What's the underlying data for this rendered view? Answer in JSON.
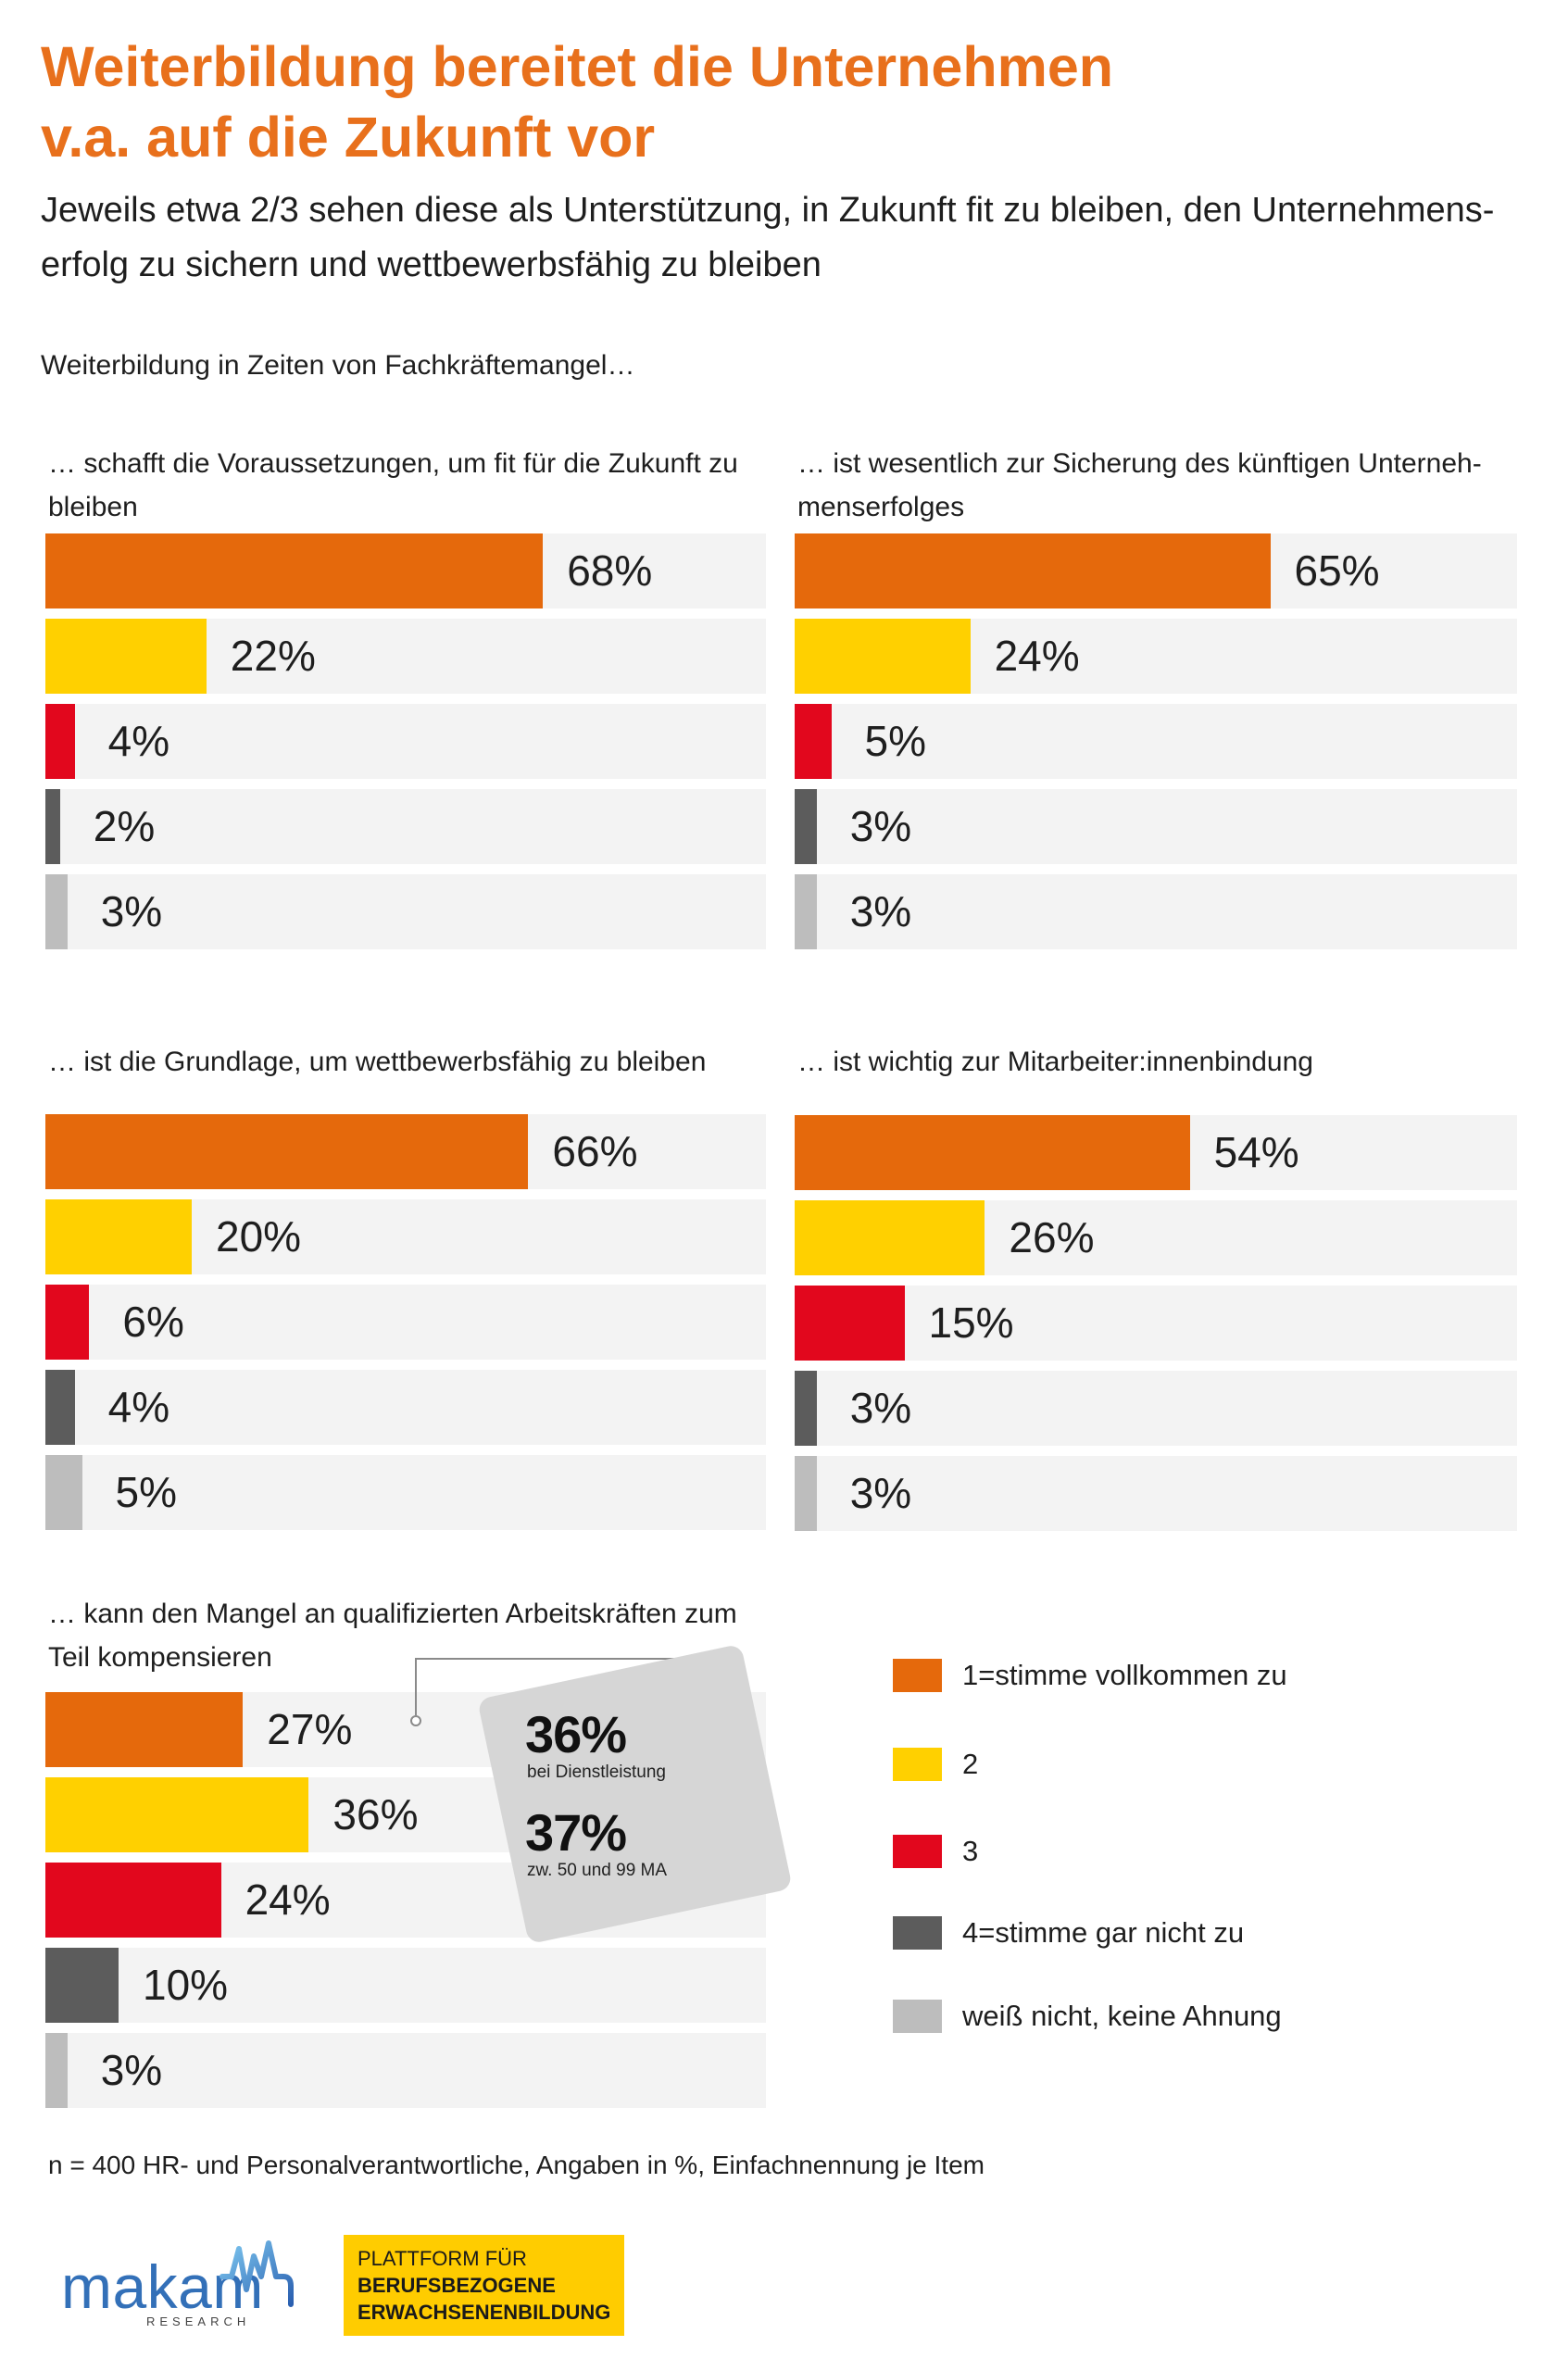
{
  "header": {
    "title_lines": [
      "Weiterbildung bereitet die Unternehmen",
      "v.a. auf die Zukunft vor"
    ],
    "subtitle_lines": [
      "Jeweils etwa 2/3 sehen diese als Unterstützung, in Zukunft fit zu bleiben, den Unternehmens-",
      "erfolg zu sichern und wettbewerbsfähig zu bleiben"
    ],
    "section_label": "Weiterbildung in Zeiten von Fachkräftemangel…",
    "title_color": "#E8701C"
  },
  "legend": {
    "items": [
      {
        "label": "1=stimme vollkommen zu",
        "color": "#E5690C"
      },
      {
        "label": "2",
        "color": "#FFD000"
      },
      {
        "label": "3",
        "color": "#E2071D"
      },
      {
        "label": "4=stimme gar nicht zu",
        "color": "#5C5C5C"
      },
      {
        "label": "weiß nicht, keine Ahnung",
        "color": "#BDBDBD"
      }
    ]
  },
  "chart_data": [
    {
      "type": "bar",
      "orientation": "horizontal",
      "title_lines": [
        "… schafft die Voraussetzungen, um fit für die Zukunft zu",
        "bleiben"
      ],
      "values": [
        68,
        22,
        4,
        2,
        3
      ],
      "unit": "%"
    },
    {
      "type": "bar",
      "orientation": "horizontal",
      "title_lines": [
        "… ist wesentlich zur Sicherung des künftigen Unterneh-",
        "menserfolges"
      ],
      "values": [
        65,
        24,
        5,
        3,
        3
      ],
      "unit": "%"
    },
    {
      "type": "bar",
      "orientation": "horizontal",
      "title_lines": [
        "… ist die Grundlage, um wettbewerbsfähig zu bleiben"
      ],
      "values": [
        66,
        20,
        6,
        4,
        5
      ],
      "unit": "%"
    },
    {
      "type": "bar",
      "orientation": "horizontal",
      "title_lines": [
        "… ist wichtig zur Mitarbeiter:innenbindung"
      ],
      "values": [
        54,
        26,
        15,
        3,
        3
      ],
      "unit": "%"
    },
    {
      "type": "bar",
      "orientation": "horizontal",
      "title_lines": [
        "… kann den Mangel an qualifizierten Arbeitskräften zum",
        "Teil kompensieren"
      ],
      "values": [
        27,
        36,
        24,
        10,
        3
      ],
      "unit": "%",
      "annotation": {
        "items": [
          {
            "value": "36%",
            "label": "bei Dienstleistung"
          },
          {
            "value": "37%",
            "label": "zw. 50 und 99 MA"
          }
        ]
      }
    }
  ],
  "footnote": "n = 400 HR- und Personalverantwortliche, Angaben in %, Einfachnennung je Item",
  "logos": {
    "makam": {
      "wordmark": "makam",
      "tagline": "RESEARCH",
      "color": "#3370B8"
    },
    "platform": {
      "lines": [
        "PLATTFORM FÜR",
        "BERUFSBEZOGENE",
        "ERWACHSENENBILDUNG"
      ],
      "background": "#FFCC00"
    }
  }
}
